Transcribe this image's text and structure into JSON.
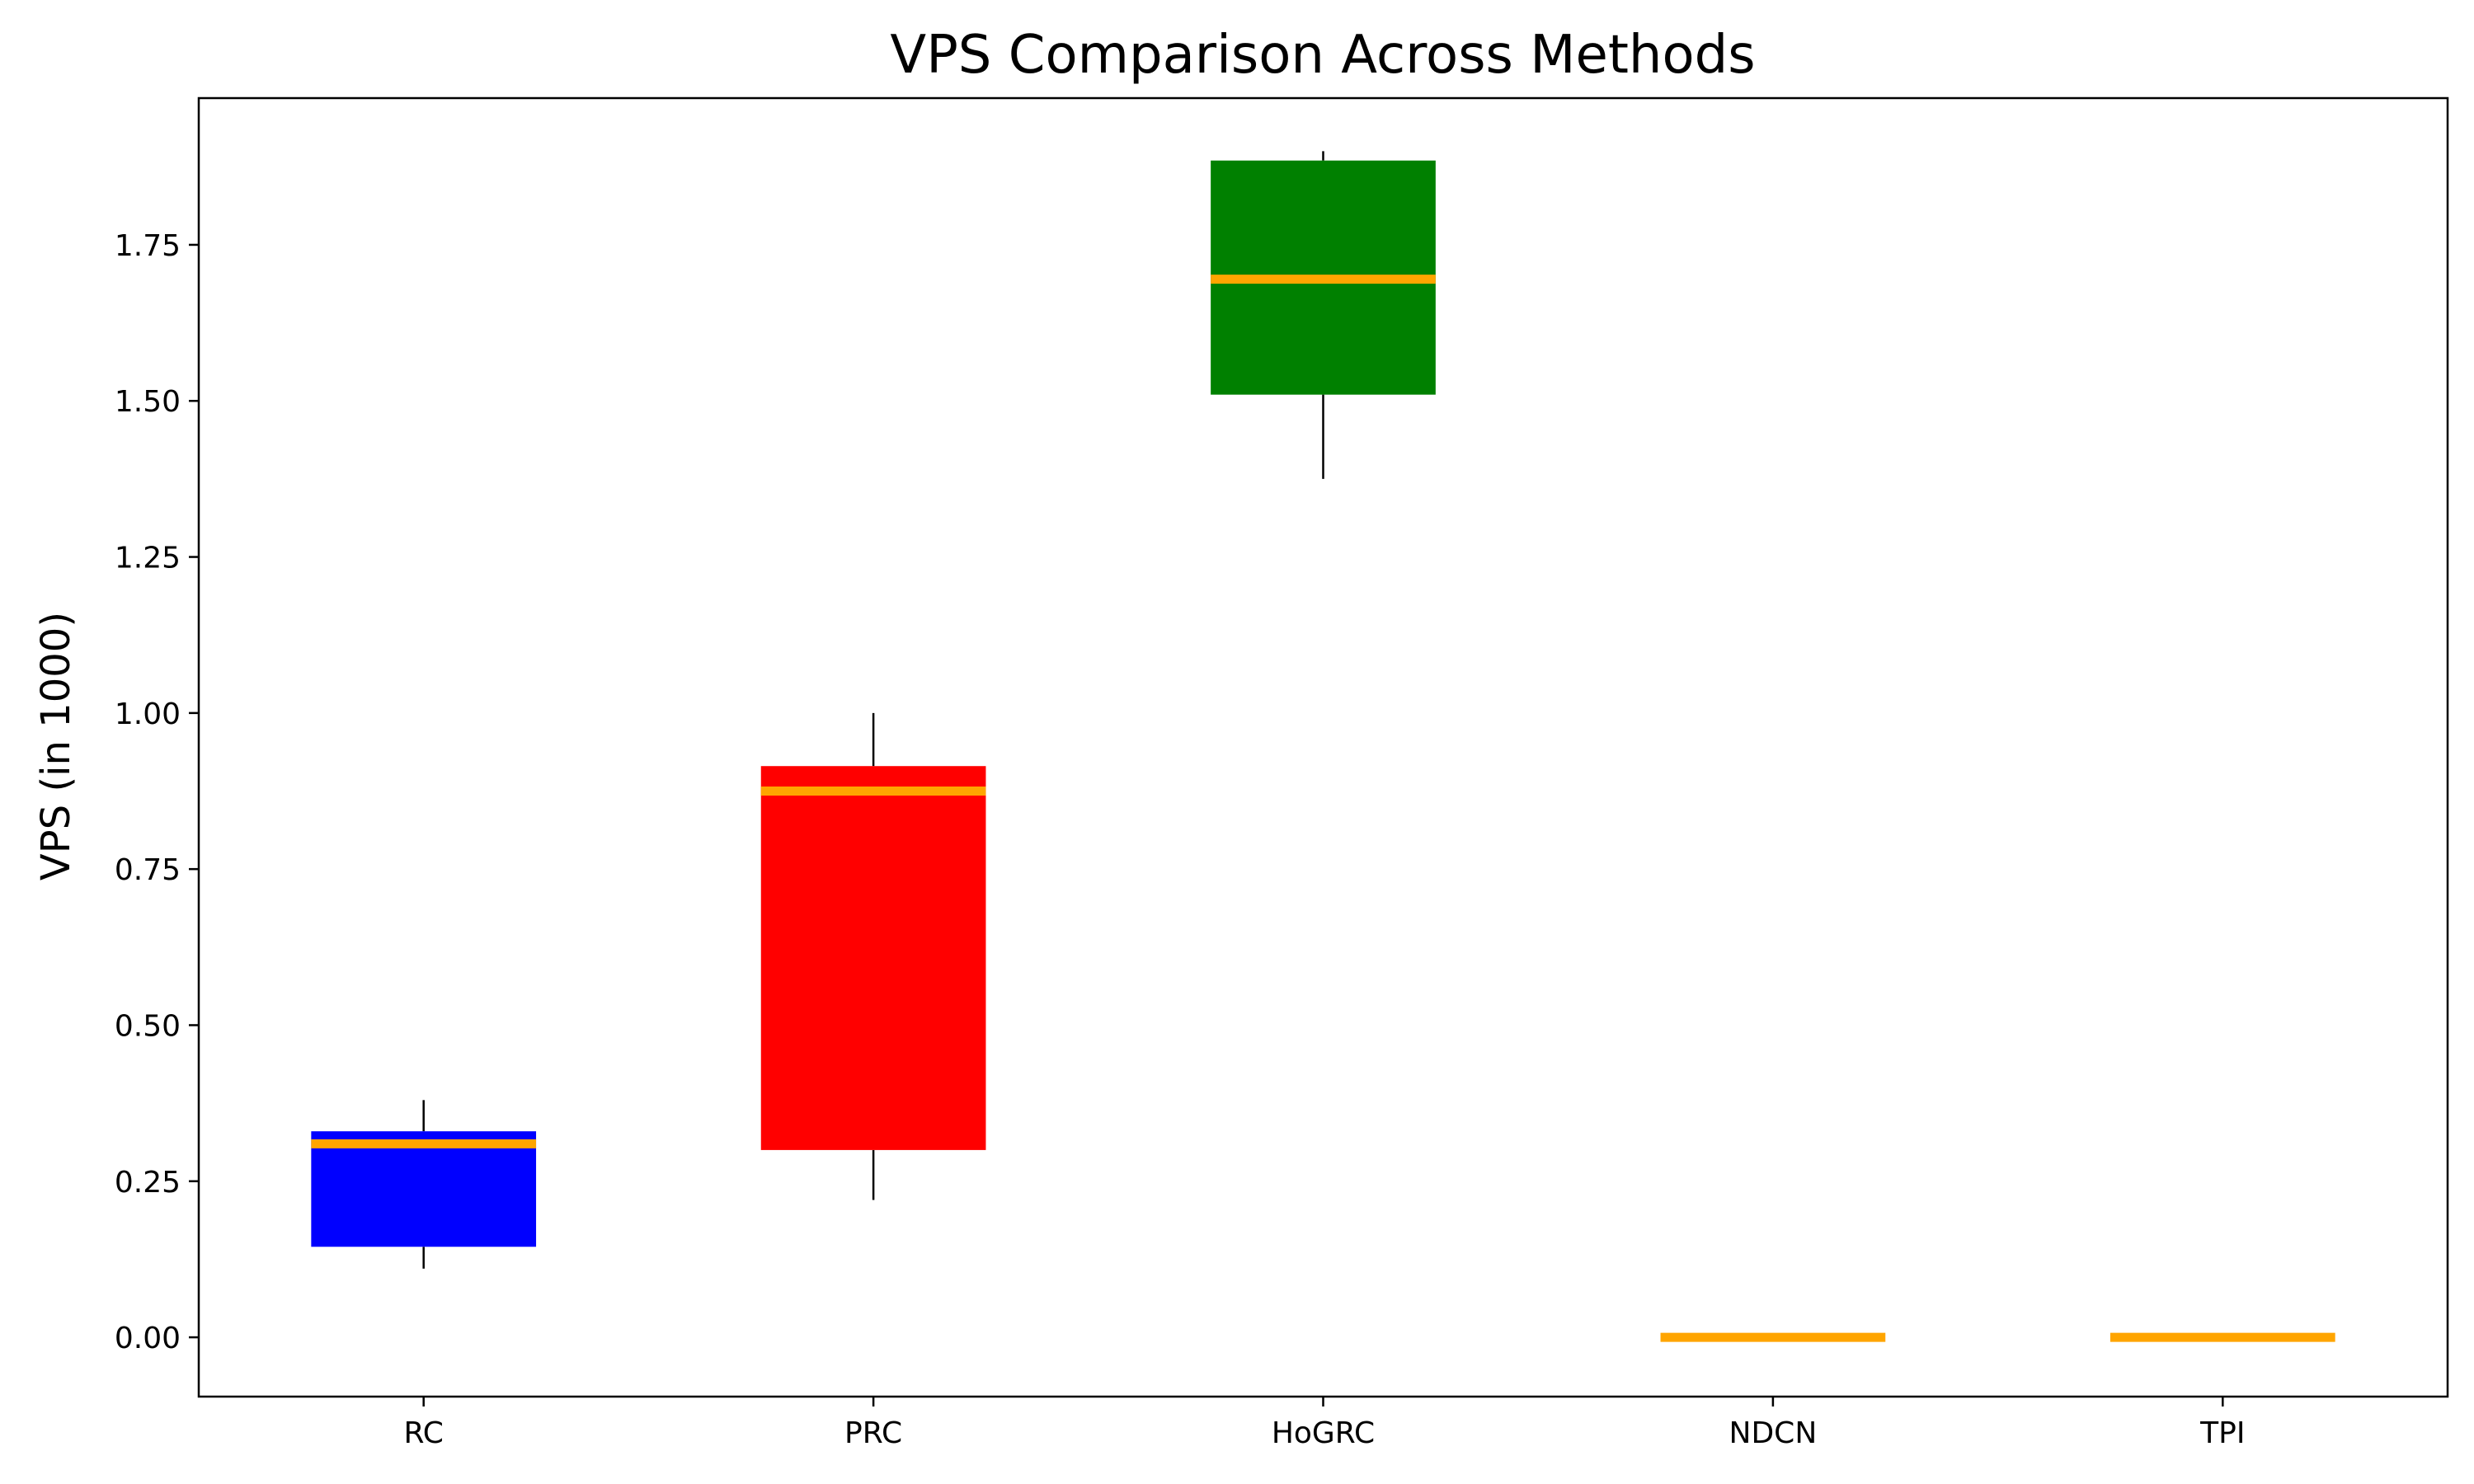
{
  "chart_data": {
    "type": "box",
    "title": "VPS Comparison Across Methods",
    "xlabel": "",
    "ylabel": "VPS (in 1000)",
    "ylim": [
      -0.095,
      1.985
    ],
    "yticks": [
      0.0,
      0.25,
      0.5,
      0.75,
      1.0,
      1.25,
      1.5,
      1.75
    ],
    "ytick_labels": [
      "0.00",
      "0.25",
      "0.50",
      "0.75",
      "1.00",
      "1.25",
      "1.50",
      "1.75"
    ],
    "grid": false,
    "categories": [
      "RC",
      "PRC",
      "HoGRC",
      "NDCN",
      "TPI"
    ],
    "boxes": [
      {
        "name": "RC",
        "whisker_low": 0.11,
        "q1": 0.145,
        "median": 0.31,
        "q3": 0.33,
        "whisker_high": 0.38,
        "color": "#0000ff"
      },
      {
        "name": "PRC",
        "whisker_low": 0.22,
        "q1": 0.3,
        "median": 0.875,
        "q3": 0.915,
        "whisker_high": 1.0,
        "color": "#ff0000"
      },
      {
        "name": "HoGRC",
        "whisker_low": 1.375,
        "q1": 1.51,
        "median": 1.695,
        "q3": 1.885,
        "whisker_high": 1.9,
        "color": "#008000"
      },
      {
        "name": "NDCN",
        "whisker_low": 0.0,
        "q1": 0.0,
        "median": 0.0,
        "q3": 0.0,
        "whisker_high": 0.0,
        "color": "#ffa500"
      },
      {
        "name": "TPI",
        "whisker_low": 0.0,
        "q1": 0.0,
        "median": 0.0,
        "q3": 0.0,
        "whisker_high": 0.0,
        "color": "#ffa500"
      }
    ],
    "median_color": "#ffa500",
    "whisker_color": "#000000"
  }
}
